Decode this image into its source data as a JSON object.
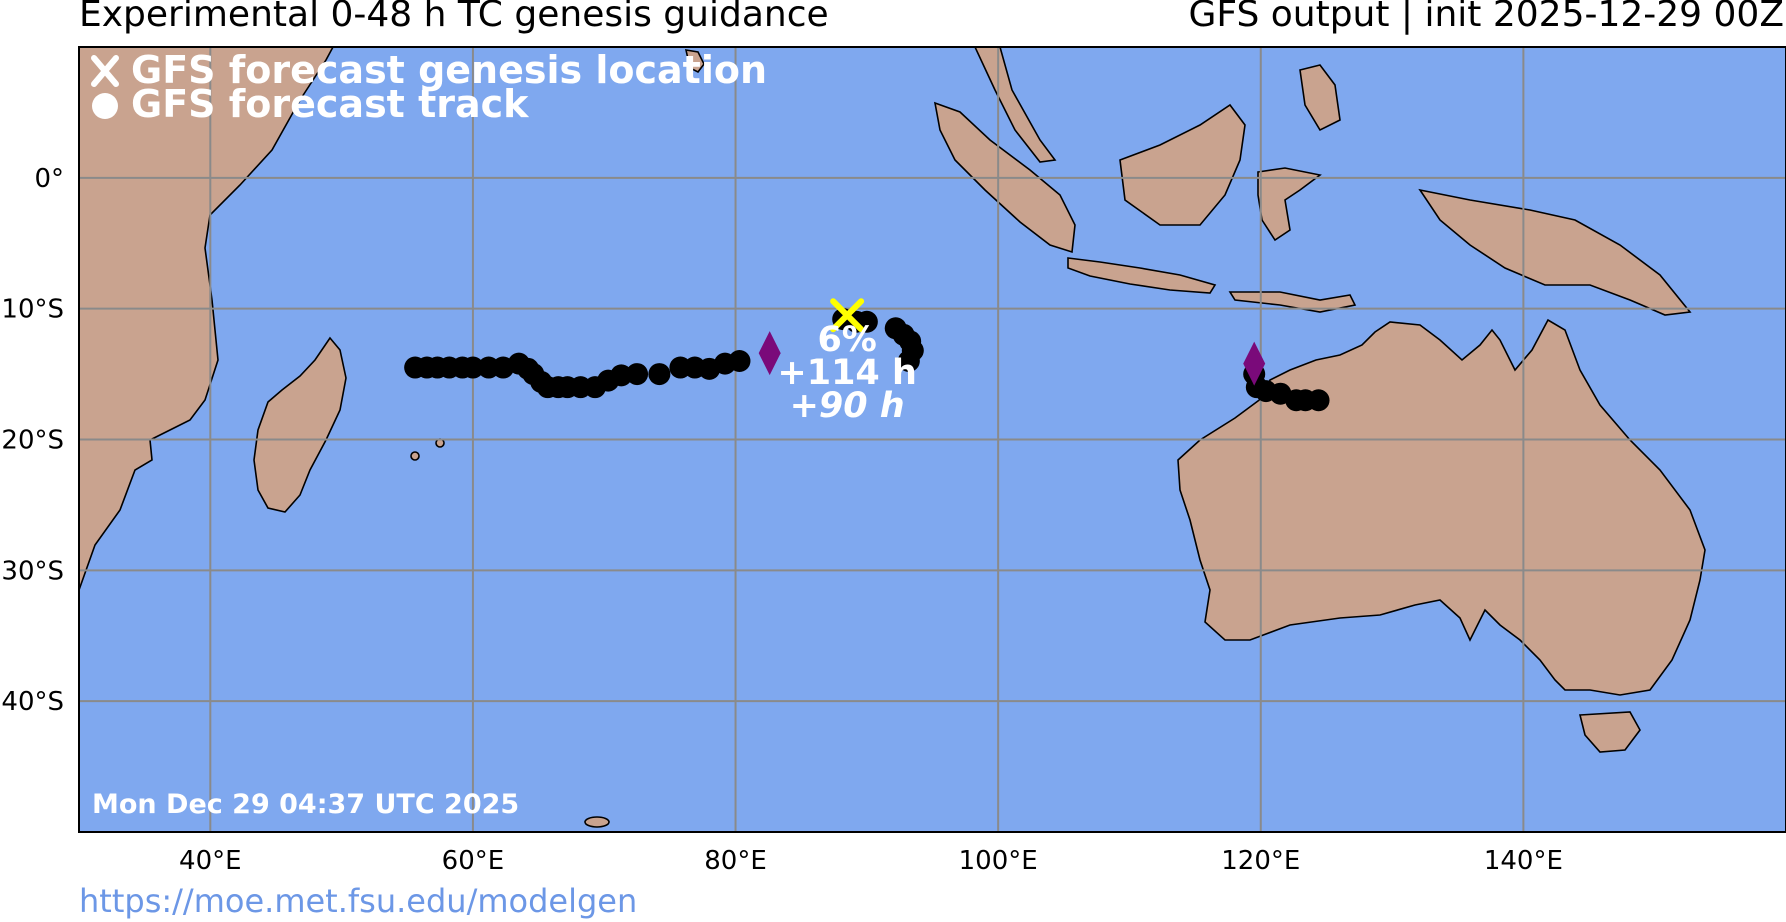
{
  "title_left": "Experimental 0-48 h TC genesis guidance",
  "title_right": "GFS output | init 2025-12-29 00Z",
  "legend": {
    "genesis_label": "GFS forecast genesis location",
    "track_label": "GFS forecast track",
    "genesis_icon": "x-marker-icon",
    "track_icon": "dot-marker-icon"
  },
  "colors": {
    "ocean": "#7fa8ef",
    "land": "#c9a38f",
    "grid": "#8a8a8a",
    "genesis_marker": "#ffff00",
    "track": "#000000",
    "diamond": "#7a0a7a",
    "url": "#6c97e6"
  },
  "map": {
    "lon_range": [
      30,
      160
    ],
    "lat_range": [
      -50,
      10
    ],
    "lon_ticks": [
      {
        "value": 40,
        "label": "40°E"
      },
      {
        "value": 60,
        "label": "60°E"
      },
      {
        "value": 80,
        "label": "80°E"
      },
      {
        "value": 100,
        "label": "100°E"
      },
      {
        "value": 120,
        "label": "120°E"
      },
      {
        "value": 140,
        "label": "140°E"
      }
    ],
    "lat_ticks": [
      {
        "value": 0,
        "label": "0°"
      },
      {
        "value": -10,
        "label": "10°S"
      },
      {
        "value": -20,
        "label": "20°S"
      },
      {
        "value": -30,
        "label": "30°S"
      },
      {
        "value": -40,
        "label": "40°S"
      }
    ],
    "grid": true
  },
  "genesis": {
    "lon": 88.5,
    "lat": -10.5,
    "probability": "6%",
    "lead_time": "+114 h",
    "duration": "+90 h"
  },
  "tracks": [
    {
      "points": [
        [
          88.2,
          -10.8
        ],
        [
          89.2,
          -11
        ],
        [
          90,
          -11
        ],
        [
          92.2,
          -11.5
        ],
        [
          92.8,
          -12
        ],
        [
          93.3,
          -12.5
        ],
        [
          93.5,
          -13.2
        ],
        [
          93.2,
          -14
        ],
        [
          80.3,
          -14
        ],
        [
          79.2,
          -14.2
        ],
        [
          78,
          -14.6
        ],
        [
          76.9,
          -14.5
        ],
        [
          75.8,
          -14.5
        ],
        [
          74.2,
          -15
        ],
        [
          72.5,
          -15
        ],
        [
          71.3,
          -15.1
        ],
        [
          70.3,
          -15.5
        ],
        [
          69.3,
          -16
        ],
        [
          68.2,
          -16
        ],
        [
          67.2,
          -16
        ],
        [
          66.5,
          -16
        ],
        [
          65.7,
          -16
        ],
        [
          65.2,
          -15.6
        ],
        [
          64.6,
          -15
        ],
        [
          64.2,
          -14.6
        ],
        [
          63.5,
          -14.2
        ],
        [
          62.3,
          -14.5
        ],
        [
          61.2,
          -14.5
        ],
        [
          60,
          -14.5
        ],
        [
          59.2,
          -14.5
        ],
        [
          58.2,
          -14.5
        ],
        [
          57.3,
          -14.5
        ],
        [
          56.5,
          -14.5
        ],
        [
          55.6,
          -14.5
        ]
      ],
      "diamond": [
        82.6,
        -13.4
      ]
    },
    {
      "points": [
        [
          119.5,
          -15
        ],
        [
          119.7,
          -16
        ],
        [
          120.4,
          -16.3
        ],
        [
          121.5,
          -16.5
        ],
        [
          122.7,
          -17
        ],
        [
          123.4,
          -17
        ],
        [
          124.4,
          -17
        ]
      ],
      "diamond": [
        119.5,
        -14.2
      ]
    }
  ],
  "timestamp": "Mon Dec 29 04:37 UTC 2025",
  "url": "https://moe.met.fsu.edu/modelgen"
}
